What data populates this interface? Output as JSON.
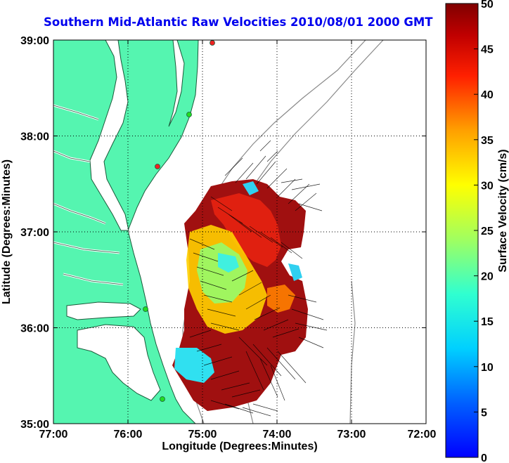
{
  "title": "Southern Mid-Atlantic Raw Velocities 2010/08/01 2000 GMT",
  "x_axis": {
    "label": "Longitude (Degrees:Minutes)",
    "ticks": [
      "77:00",
      "76:00",
      "75:00",
      "74:00",
      "73:00",
      "72:00"
    ]
  },
  "y_axis": {
    "label": "Latitude (Degrees:Minutes)",
    "ticks": [
      "39:00",
      "38:00",
      "37:00",
      "36:00",
      "35:00"
    ]
  },
  "colorbar": {
    "label": "Surface Velocity (cm/s)",
    "ticks": [
      "50",
      "45",
      "40",
      "35",
      "30",
      "25",
      "20",
      "15",
      "10",
      "5",
      "0"
    ],
    "colormap": "jet",
    "range": [
      0,
      50
    ]
  },
  "map": {
    "lon_range": [
      -77,
      -72
    ],
    "lat_range": [
      35,
      39
    ],
    "land_color": "#55f5b0",
    "grid": "dotted",
    "bathymetry_contours": true,
    "radar_sites": [
      {
        "name": "site-1",
        "color": "#ee2222"
      },
      {
        "name": "site-2",
        "color": "#22dd22"
      },
      {
        "name": "site-3",
        "color": "#ee2222"
      },
      {
        "name": "site-4",
        "color": "#22dd22"
      },
      {
        "name": "site-5",
        "color": "#22dd22"
      }
    ]
  }
}
